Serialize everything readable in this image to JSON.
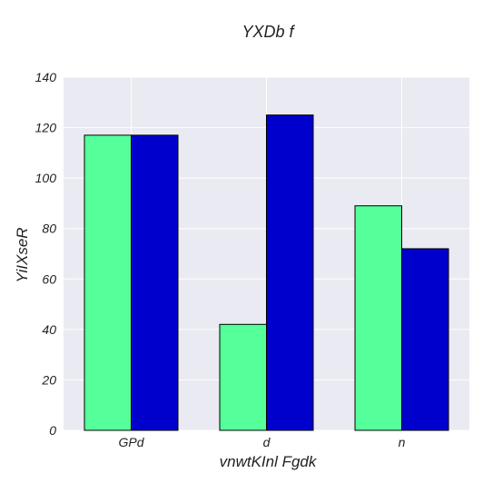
{
  "chart_data": {
    "type": "bar",
    "title": "YXDb  f",
    "xlabel": "vnwtKInl Fgdk",
    "ylabel": "YiIXseR",
    "categories": [
      "GPd",
      "d",
      "n"
    ],
    "series": [
      {
        "values": [
          117,
          42,
          89
        ],
        "color": "#55ff99"
      },
      {
        "values": [
          117,
          125,
          72
        ],
        "color": "#0000cd"
      }
    ],
    "ylim": [
      0,
      140
    ],
    "yticks": [
      0,
      20,
      40,
      60,
      80,
      100,
      120,
      140
    ],
    "grid": true,
    "legend": "none",
    "plot_background": "#eaeaf2",
    "grid_color": "#ffffff"
  }
}
